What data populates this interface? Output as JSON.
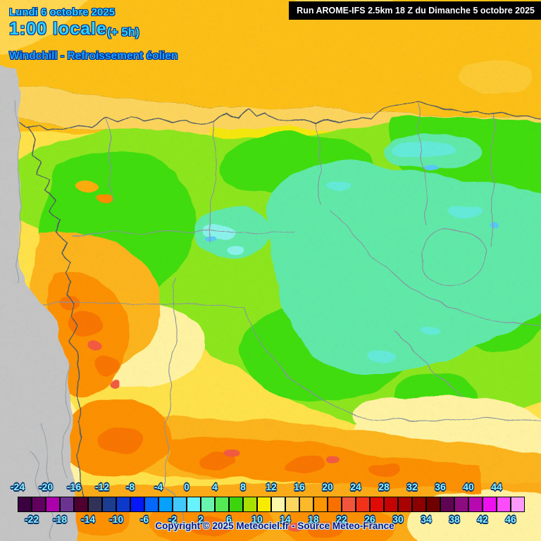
{
  "header": {
    "date": "Lundi 6 octobre 2025",
    "time": "1:00 locale",
    "offset": "(+ 5h)",
    "variable": "Windchill - Refroissement éolien"
  },
  "run_box": {
    "text": "Run AROME-IFS 2.5km 18 Z du Dimanche 5 octobre 2025"
  },
  "footer": {
    "copyright": "Copyright © 2025 Meteociel.fr - Source Meteo-France"
  },
  "colors": {
    "header-text": "#2fd2ff",
    "header-outline": "#003090",
    "variable-text": "#1fa0ff",
    "run-box-bg": "#000003",
    "run-box-text": "#ffffff",
    "scale-label": "#8df4ff",
    "scale-outline": "#04306c",
    "copyright-text": "#141477",
    "copyright-glow": "#c8ecff",
    "nodata-grey": "#c4c4c4"
  },
  "scale": {
    "unit_step_per_cell": 2,
    "top_labels": [
      "-24",
      "-20",
      "-16",
      "-12",
      "-8",
      "-4",
      "0",
      "4",
      "8",
      "12",
      "16",
      "20",
      "24",
      "28",
      "32",
      "36",
      "40",
      "44"
    ],
    "bottom_labels": [
      "-22",
      "-18",
      "-14",
      "-10",
      "-6",
      "-2",
      "2",
      "6",
      "10",
      "14",
      "18",
      "22",
      "26",
      "30",
      "34",
      "38",
      "42",
      "46"
    ],
    "cell_colors": [
      "#3a0040",
      "#61005f",
      "#ad00ad",
      "#6b3390",
      "#4f0030",
      "#323258",
      "#1c3c8f",
      "#0d38cc",
      "#0518fa",
      "#0567fc",
      "#05a1fc",
      "#41c9fc",
      "#66f2fe",
      "#68f4ae",
      "#55e955",
      "#3cd40c",
      "#a8e000",
      "#f7ec00",
      "#fdf9a8",
      "#fcd75f",
      "#fcba2b",
      "#fc9500",
      "#f87100",
      "#f2553c",
      "#f4321a",
      "#e00b06",
      "#c40303",
      "#a80202",
      "#8c0101",
      "#6f0000",
      "#5f0453",
      "#8d0b80",
      "#b808b0",
      "#ee10ee",
      "#fc4cfc",
      "#fc9afc"
    ]
  }
}
